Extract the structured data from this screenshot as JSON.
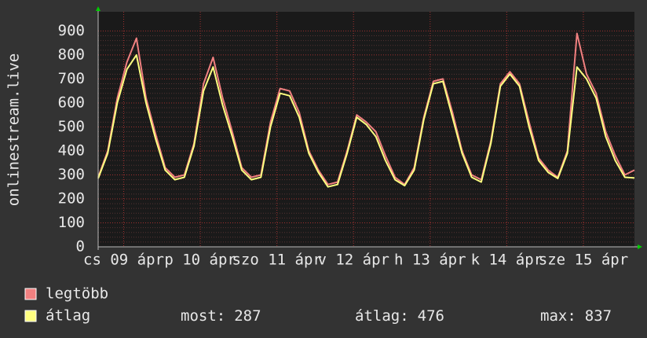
{
  "chart_data": {
    "type": "line",
    "y_axis_label": "onlinestream.live",
    "x": [
      0,
      3,
      6,
      9,
      12,
      15,
      18,
      21,
      24,
      27,
      30,
      33,
      36,
      39,
      42,
      45,
      48,
      51,
      54,
      57,
      60,
      63,
      66,
      69,
      72,
      75,
      78,
      81,
      84,
      87,
      90,
      93,
      96,
      99,
      102,
      105,
      108,
      111,
      114,
      117,
      120,
      123,
      126,
      129,
      132,
      135,
      138,
      141,
      144,
      147,
      150,
      153,
      156,
      159,
      162,
      165,
      168
    ],
    "xlim": [
      0,
      168
    ],
    "xticks": [
      {
        "value": 8,
        "label": "cs 09 ápr"
      },
      {
        "value": 32,
        "label": "p 10 ápr"
      },
      {
        "value": 56,
        "label": "szo 11 ápr"
      },
      {
        "value": 80,
        "label": "v 12 ápr"
      },
      {
        "value": 104,
        "label": "h 13 ápr"
      },
      {
        "value": 128,
        "label": "k 14 ápr"
      },
      {
        "value": 152,
        "label": "sze 15 ápr"
      }
    ],
    "ylim": [
      0,
      980
    ],
    "yticks": [
      0,
      100,
      200,
      300,
      400,
      500,
      600,
      700,
      800,
      900
    ],
    "grid": true,
    "series": [
      {
        "name": "legtöbb",
        "color": "#f08080",
        "values": [
          290,
          400,
          620,
          770,
          870,
          620,
          470,
          330,
          290,
          300,
          430,
          680,
          790,
          620,
          480,
          330,
          290,
          300,
          520,
          660,
          650,
          560,
          400,
          320,
          260,
          270,
          400,
          550,
          520,
          480,
          380,
          290,
          260,
          330,
          540,
          690,
          700,
          560,
          400,
          300,
          280,
          440,
          680,
          730,
          680,
          520,
          370,
          320,
          290,
          400,
          890,
          720,
          640,
          480,
          380,
          300,
          320
        ]
      },
      {
        "name": "átlag",
        "color": "#ffff80",
        "values": [
          285,
          390,
          600,
          740,
          800,
          600,
          450,
          320,
          280,
          290,
          420,
          650,
          750,
          590,
          460,
          320,
          280,
          290,
          500,
          640,
          630,
          540,
          390,
          310,
          250,
          260,
          390,
          540,
          510,
          460,
          360,
          280,
          255,
          320,
          530,
          680,
          690,
          540,
          390,
          290,
          270,
          430,
          670,
          720,
          670,
          500,
          360,
          310,
          285,
          390,
          750,
          700,
          620,
          460,
          360,
          290,
          287
        ]
      }
    ],
    "stats": [
      {
        "label": "most:",
        "value": 287
      },
      {
        "label": "átlag:",
        "value": 476
      },
      {
        "label": "max:",
        "value": 837
      }
    ]
  }
}
